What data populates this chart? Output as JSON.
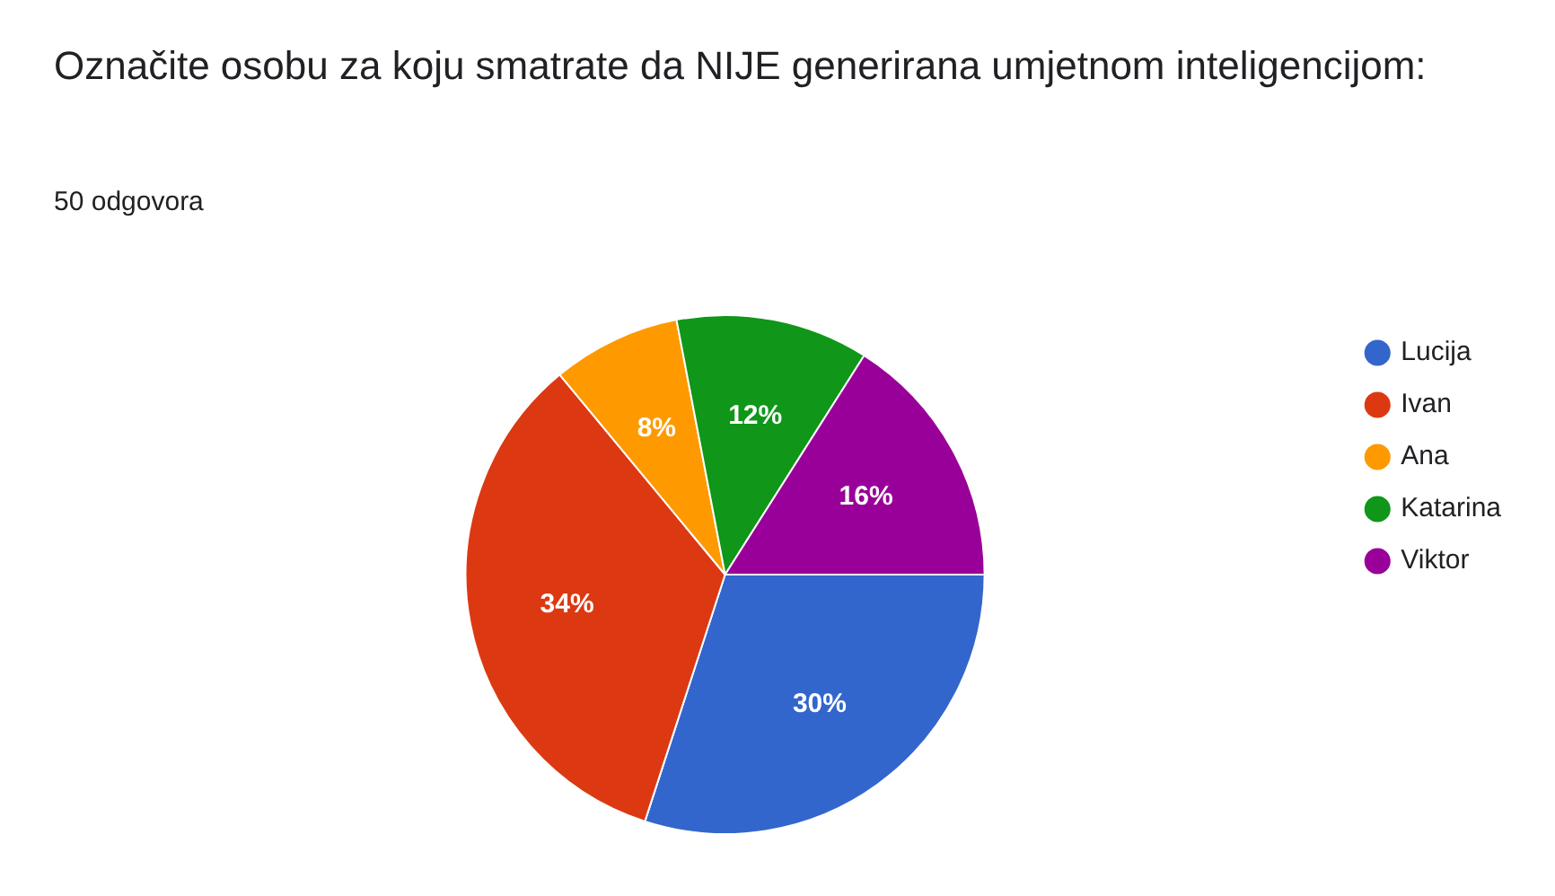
{
  "chart_data": {
    "type": "pie",
    "title": "Označite osobu za koju smatrate da NIJE generirana umjetnom inteligencijom:",
    "subtitle": "50 odgovora",
    "categories": [
      "Lucija",
      "Ivan",
      "Ana",
      "Katarina",
      "Viktor"
    ],
    "values": [
      30,
      34,
      8,
      12,
      16
    ],
    "colors": [
      "#3366cc",
      "#dc3912",
      "#ff9900",
      "#109618",
      "#990099"
    ],
    "value_labels": [
      "30%",
      "34%",
      "8%",
      "12%",
      "16%"
    ],
    "legend": "right"
  }
}
